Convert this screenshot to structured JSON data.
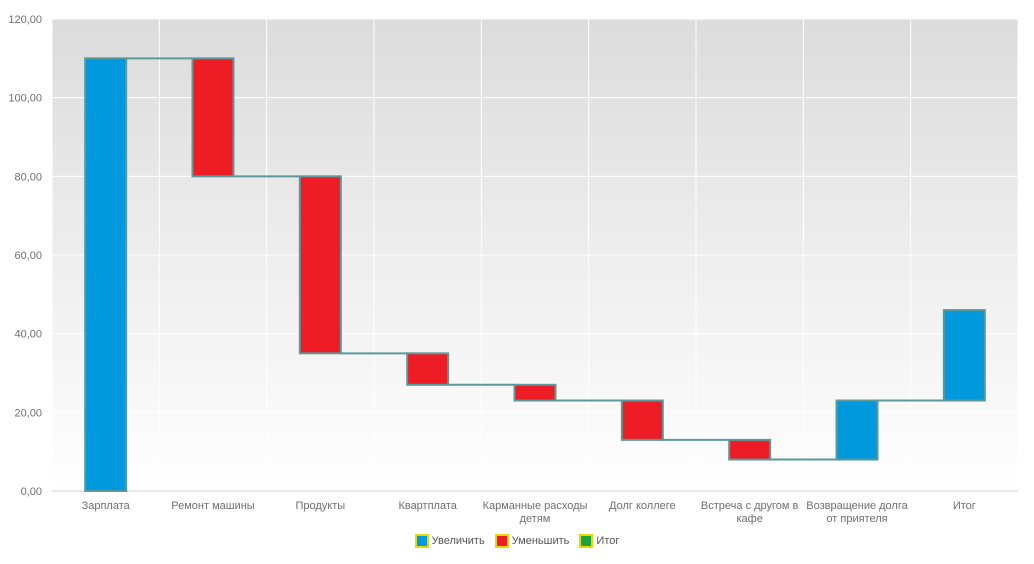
{
  "chart_data": {
    "type": "bar",
    "subtype": "waterfall",
    "categories": [
      "Зарплата",
      "Ремонт машины",
      "Продукты",
      "Квартплата",
      "Карманные расходы детям",
      "Долг коллеге",
      "Встреча с другом в кафе",
      "Возвращение долга от приятеля",
      "Итог"
    ],
    "category_lines": [
      [
        "Зарплата"
      ],
      [
        "Ремонт машины"
      ],
      [
        "Продукты"
      ],
      [
        "Квартплата"
      ],
      [
        "Карманные расходы",
        "детям"
      ],
      [
        "Долг коллеге"
      ],
      [
        "Встреча с другом в",
        "кафе"
      ],
      [
        "Возвращение долга",
        "от приятеля"
      ],
      [
        "Итог"
      ]
    ],
    "steps": [
      {
        "kind": "increase",
        "start": 0,
        "end": 110
      },
      {
        "kind": "decrease",
        "start": 110,
        "end": 80
      },
      {
        "kind": "decrease",
        "start": 80,
        "end": 35
      },
      {
        "kind": "decrease",
        "start": 35,
        "end": 27
      },
      {
        "kind": "decrease",
        "start": 27,
        "end": 23
      },
      {
        "kind": "decrease",
        "start": 23,
        "end": 13
      },
      {
        "kind": "decrease",
        "start": 13,
        "end": 8
      },
      {
        "kind": "increase",
        "start": 8,
        "end": 23
      },
      {
        "kind": "increase",
        "start": 23,
        "end": 46
      }
    ],
    "yticks": [
      "0,00",
      "20,00",
      "40,00",
      "60,00",
      "80,00",
      "100,00",
      "120,00"
    ],
    "ylim": [
      0,
      120
    ],
    "grid": true,
    "legend_position": "bottom",
    "legend": [
      {
        "label": "Увеличить",
        "color": "#0099dd"
      },
      {
        "label": "Уменьшить",
        "color": "#ee1c25"
      },
      {
        "label": "Итог",
        "color": "#1fa33c"
      }
    ],
    "colors": {
      "increase": "#0099dd",
      "decrease": "#ee1c25",
      "connector": "#5b9a9a",
      "bar_border": "#5b9a9a"
    }
  }
}
